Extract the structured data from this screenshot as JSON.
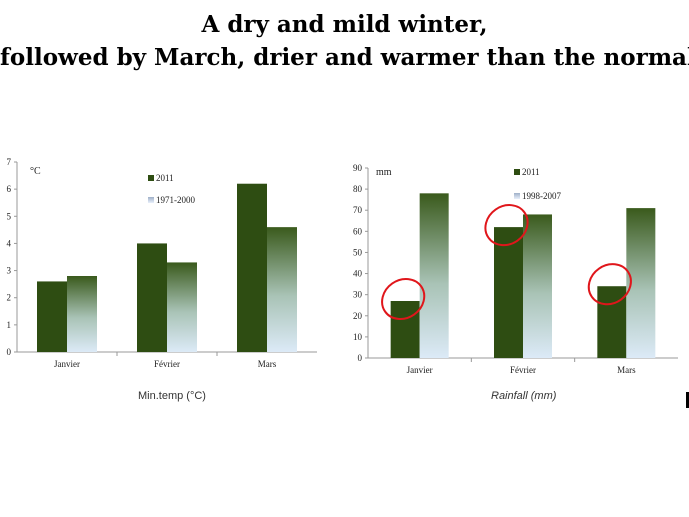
{
  "slide": {
    "title_line1": "A dry and mild winter,",
    "title_line2": "followed by March, drier and warmer than the normal"
  },
  "colors": {
    "series_2011": "#2e4d12",
    "series_normal_top": "#3a5a1c",
    "series_normal_bottom": "#dceaf7",
    "annotation_circle": "#e0161b"
  },
  "chart_data": [
    {
      "type": "bar",
      "unit_label": "°C",
      "caption": "Min.temp (°C)",
      "categories": [
        "Janvier",
        "Février",
        "Mars"
      ],
      "series": [
        {
          "name": "2011",
          "values": [
            2.6,
            4.0,
            6.2
          ]
        },
        {
          "name": "1971-2000",
          "values": [
            2.8,
            3.3,
            4.6
          ]
        }
      ],
      "ylim": [
        0,
        7
      ],
      "yticks": [
        0,
        1,
        2,
        3,
        4,
        5,
        6,
        7
      ],
      "legend_position": "top-center",
      "grid": false
    },
    {
      "type": "bar",
      "unit_label": "mm",
      "caption": "Rainfall (mm)",
      "categories": [
        "Janvier",
        "Février",
        "Mars"
      ],
      "series": [
        {
          "name": "2011",
          "values": [
            27,
            62,
            34
          ]
        },
        {
          "name": "1998-2007",
          "values": [
            78,
            68,
            71
          ]
        }
      ],
      "ylim": [
        0,
        90
      ],
      "yticks": [
        0,
        10,
        20,
        30,
        40,
        50,
        60,
        70,
        80,
        90
      ],
      "legend_position": "top-center",
      "grid": false,
      "annotations": {
        "circled_series": "2011",
        "circled_categories": [
          "Janvier",
          "Février",
          "Mars"
        ]
      }
    }
  ]
}
